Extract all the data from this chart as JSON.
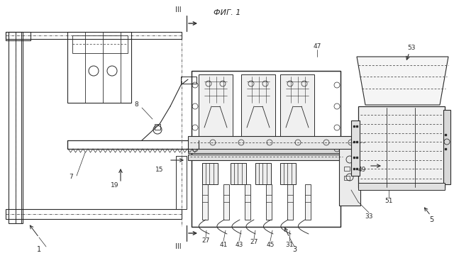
{
  "bg_color": "#ffffff",
  "line_color": "#2a2a2a",
  "fig_width": 6.4,
  "fig_height": 3.64,
  "dpi": 100,
  "caption": "ФИГ. 1"
}
